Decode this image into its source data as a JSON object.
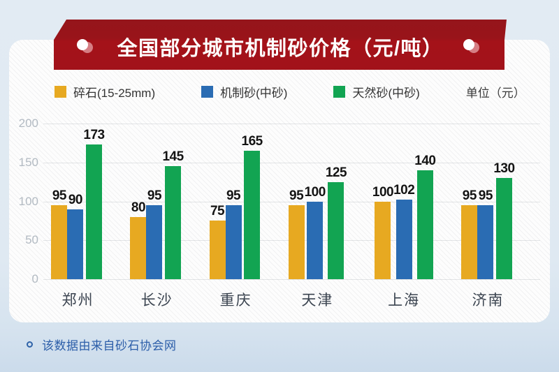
{
  "banner": {
    "title": "全国部分城市机制砂价格（元/吨）",
    "accent_color": "#a2121a",
    "accent_color_dark": "#95151b"
  },
  "legend": {
    "items": [
      {
        "label": "碎石(15-25mm)",
        "color": "#e7a921"
      },
      {
        "label": "机制砂(中砂)",
        "color": "#2a6cb3"
      },
      {
        "label": "天然砂(中砂)",
        "color": "#12a452"
      }
    ],
    "unit_label": "单位（元）"
  },
  "chart_data": {
    "type": "bar",
    "title": "全国部分城市机制砂价格（元/吨）",
    "categories": [
      "郑州",
      "长沙",
      "重庆",
      "天津",
      "上海",
      "济南"
    ],
    "series": [
      {
        "name": "碎石(15-25mm)",
        "color": "#e7a921",
        "values": [
          95,
          80,
          75,
          95,
          100,
          95
        ]
      },
      {
        "name": "机制砂(中砂)",
        "color": "#2a6cb3",
        "values": [
          90,
          95,
          95,
          100,
          102,
          95
        ]
      },
      {
        "name": "天然砂(中砂)",
        "color": "#12a452",
        "values": [
          173,
          145,
          165,
          125,
          140,
          130
        ]
      }
    ],
    "xlabel": "",
    "ylabel": "单位（元）",
    "ylim": [
      0,
      200
    ],
    "yticks": [
      0,
      50,
      100,
      150,
      200
    ],
    "grid": true,
    "legend_position": "top",
    "value_labels": true
  },
  "footer": {
    "note": "该数据由来自砂石协会网"
  }
}
